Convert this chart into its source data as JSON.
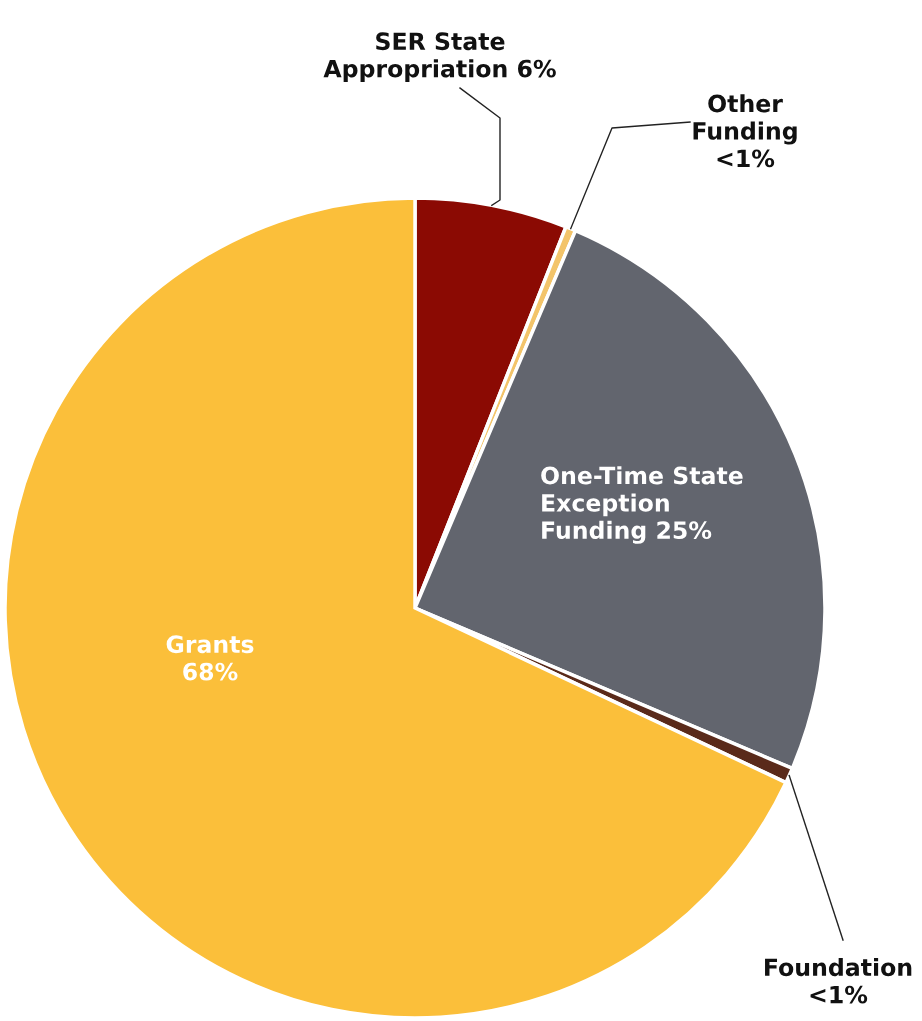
{
  "chart_data": {
    "type": "pie",
    "categories": [
      "SER State Appropriation",
      "Other Funding",
      "One-Time State Exception Funding",
      "Foundation",
      "Grants"
    ],
    "values": [
      6,
      0.4,
      25,
      0.6,
      68
    ],
    "value_labels": [
      "6%",
      "<1%",
      "25%",
      "<1%",
      "68%"
    ],
    "colors": [
      "#8b0a03",
      "#f3c46a",
      "#62656e",
      "#5a2a1a",
      "#fbbf3a"
    ]
  }
}
